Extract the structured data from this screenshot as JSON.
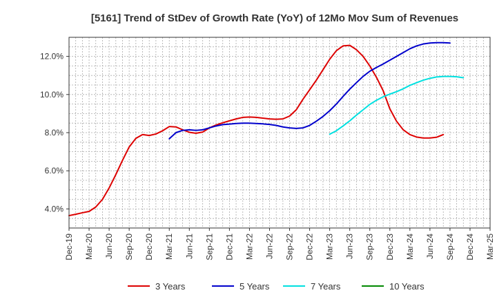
{
  "chart_data": {
    "type": "line",
    "title": "[5161]  Trend of StDev of Growth Rate (YoY) of 12Mo Mov Sum of Revenues",
    "xlabel": "",
    "ylabel": "",
    "x_tick_labels": [
      "Dec-19",
      "Mar-20",
      "Jun-20",
      "Sep-20",
      "Dec-20",
      "Mar-21",
      "Jun-21",
      "Sep-21",
      "Dec-21",
      "Mar-22",
      "Jun-22",
      "Sep-22",
      "Dec-22",
      "Mar-23",
      "Jun-23",
      "Sep-23",
      "Dec-23",
      "Mar-24",
      "Jun-24",
      "Sep-24",
      "Dec-24",
      "Mar-25"
    ],
    "y_ticks": [
      4.0,
      6.0,
      8.0,
      10.0,
      12.0
    ],
    "y_tick_labels": [
      "4.0%",
      "6.0%",
      "8.0%",
      "10.0%",
      "12.0%"
    ],
    "ylim": [
      3.0,
      13.0
    ],
    "x_index_range": [
      0,
      63
    ],
    "grid": true,
    "legend_position": "bottom",
    "series": [
      {
        "name": "3 Years",
        "color": "#dd0000",
        "start_index": 0,
        "values": [
          3.65,
          3.72,
          3.8,
          3.87,
          4.1,
          4.5,
          5.1,
          5.8,
          6.55,
          7.25,
          7.7,
          7.9,
          7.85,
          7.93,
          8.1,
          8.32,
          8.3,
          8.15,
          8.02,
          7.97,
          8.03,
          8.25,
          8.4,
          8.52,
          8.62,
          8.72,
          8.8,
          8.82,
          8.8,
          8.76,
          8.72,
          8.7,
          8.72,
          8.87,
          9.2,
          9.75,
          10.25,
          10.75,
          11.3,
          11.85,
          12.3,
          12.55,
          12.58,
          12.35,
          12.0,
          11.5,
          10.9,
          10.2,
          9.25,
          8.6,
          8.15,
          7.9,
          7.77,
          7.72,
          7.72,
          7.76,
          7.9
        ]
      },
      {
        "name": "5 Years",
        "color": "#0000cc",
        "start_index": 15,
        "values": [
          7.68,
          8.0,
          8.12,
          8.15,
          8.12,
          8.15,
          8.25,
          8.35,
          8.42,
          8.45,
          8.48,
          8.5,
          8.5,
          8.48,
          8.46,
          8.43,
          8.38,
          8.3,
          8.25,
          8.22,
          8.25,
          8.38,
          8.6,
          8.85,
          9.15,
          9.5,
          9.9,
          10.28,
          10.62,
          10.95,
          11.22,
          11.42,
          11.6,
          11.8,
          12.0,
          12.2,
          12.4,
          12.55,
          12.65,
          12.7,
          12.72,
          12.72,
          12.7
        ]
      },
      {
        "name": "7 Years",
        "color": "#00e0e0",
        "start_index": 39,
        "values": [
          7.92,
          8.1,
          8.35,
          8.62,
          8.92,
          9.2,
          9.48,
          9.7,
          9.88,
          10.02,
          10.15,
          10.3,
          10.48,
          10.62,
          10.75,
          10.85,
          10.92,
          10.95,
          10.95,
          10.93,
          10.88
        ]
      },
      {
        "name": "10 Years",
        "color": "#008800",
        "start_index": 0,
        "values": []
      }
    ]
  }
}
